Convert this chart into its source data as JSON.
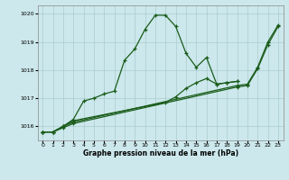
{
  "title": "Graphe pression niveau de la mer (hPa)",
  "bg_color": "#cce8ec",
  "grid_color": "#aacccc",
  "line_color": "#1a5c1a",
  "xlim": [
    -0.5,
    23.5
  ],
  "ylim": [
    1015.5,
    1020.3
  ],
  "yticks": [
    1016,
    1017,
    1018,
    1019,
    1020
  ],
  "xticks": [
    0,
    1,
    2,
    3,
    4,
    5,
    6,
    7,
    8,
    9,
    10,
    11,
    12,
    13,
    14,
    15,
    16,
    17,
    18,
    19,
    20,
    21,
    22,
    23
  ],
  "series": [
    {
      "x": [
        0,
        1,
        2,
        3,
        4,
        5,
        6,
        7,
        8,
        9,
        10,
        11,
        12,
        13,
        14,
        15,
        16,
        17,
        18,
        19
      ],
      "y": [
        1015.8,
        1015.8,
        1016.0,
        1016.25,
        1016.9,
        1017.0,
        1017.15,
        1017.25,
        1018.35,
        1018.75,
        1019.45,
        1019.95,
        1019.95,
        1019.55,
        1018.6,
        1018.1,
        1018.45,
        1017.5,
        1017.55,
        1017.6
      ]
    },
    {
      "x": [
        0,
        1,
        2,
        3,
        12,
        13,
        14,
        15,
        16,
        17,
        18,
        19
      ],
      "y": [
        1015.8,
        1015.8,
        1016.0,
        1016.2,
        1016.85,
        1017.05,
        1017.35,
        1017.55,
        1017.7,
        1017.5,
        1017.55,
        1017.6
      ]
    },
    {
      "x": [
        0,
        1,
        2,
        3,
        19,
        20,
        21,
        22,
        23
      ],
      "y": [
        1015.8,
        1015.8,
        1016.0,
        1016.15,
        1017.45,
        1017.5,
        1018.1,
        1019.0,
        1019.6
      ]
    },
    {
      "x": [
        0,
        1,
        2,
        3,
        19,
        20,
        21,
        22,
        23
      ],
      "y": [
        1015.8,
        1015.8,
        1015.95,
        1016.1,
        1017.4,
        1017.45,
        1018.05,
        1018.9,
        1019.55
      ]
    }
  ]
}
